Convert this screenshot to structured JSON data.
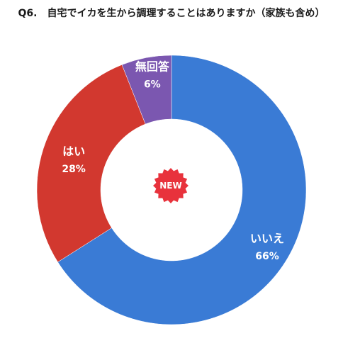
{
  "chart_data": {
    "type": "pie",
    "title": "Q6.　自宅でイカを生から調理することはありますか（家族も含め）",
    "categories": [
      "いいえ",
      "はい",
      "無回答"
    ],
    "values": [
      66,
      28,
      6
    ],
    "value_labels": [
      "66%",
      "28%",
      "6%"
    ],
    "colors": [
      "#3a7bd5",
      "#d2382f",
      "#7b57b0"
    ],
    "donut": true,
    "legend": "none"
  },
  "badge": {
    "text": "NEW",
    "color": "#e8323c"
  }
}
